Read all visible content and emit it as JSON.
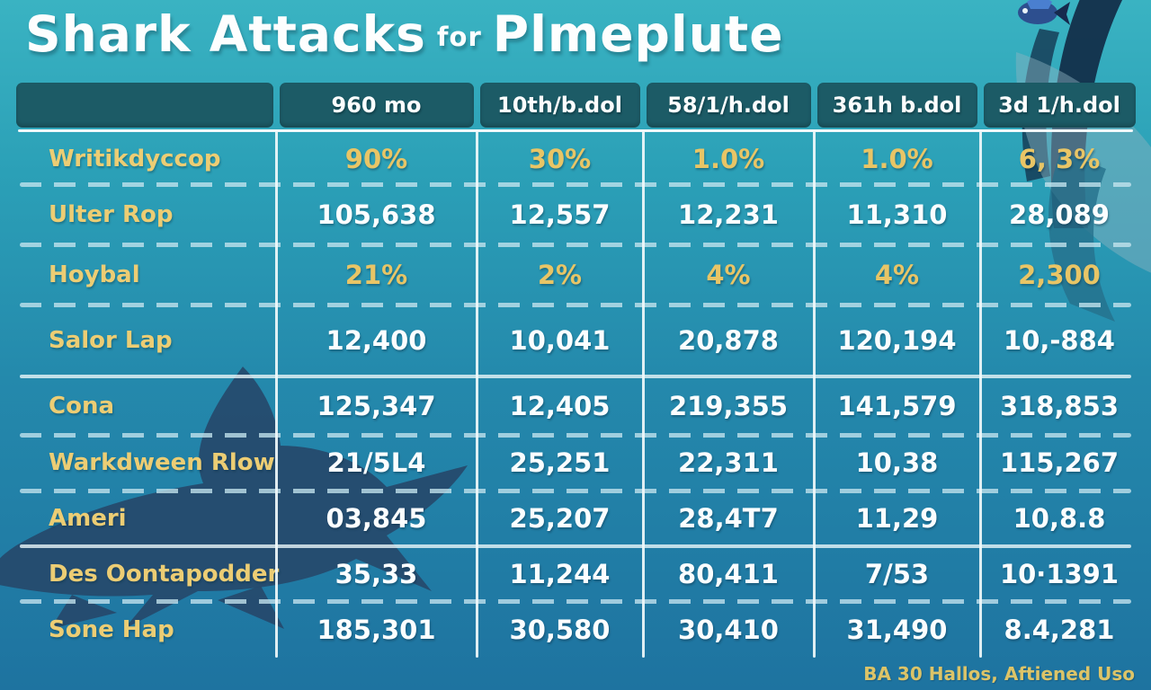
{
  "title": {
    "main": "Shark Attacks",
    "connector": "for",
    "subject": "Plmeplute"
  },
  "table": {
    "columns": [
      "",
      "960 mo",
      "10th/b.dol",
      "58/1/h.dol",
      "361h b.dol",
      "3d 1/h.dol"
    ],
    "rows": [
      {
        "label": "Writikdyccop",
        "values": [
          "90%",
          "30%",
          "1.0%",
          "1.0%",
          "6, 3%"
        ],
        "accent": true,
        "sep": "dashed"
      },
      {
        "label": "Ulter Rop",
        "values": [
          "105,638",
          "12,557",
          "12,231",
          "11,310",
          "28,089"
        ],
        "accent": false,
        "sep": "dashed"
      },
      {
        "label": "Hoybal",
        "values": [
          "21%",
          "2%",
          "4%",
          "4%",
          "2,300"
        ],
        "accent": true,
        "sep": "dashed"
      },
      {
        "label": "Salor Lap",
        "values": [
          "12,400",
          "10,041",
          "20,878",
          "120,194",
          "10,-884"
        ],
        "accent": false,
        "sep": "solid"
      },
      {
        "label": "Cona",
        "values": [
          "125,347",
          "12,405",
          "219,355",
          "141,579",
          "318,853"
        ],
        "accent": false,
        "sep": "dashed"
      },
      {
        "label": "Warkdween Rlow",
        "values": [
          "21/5L4",
          "25,251",
          "22,311",
          "10,38",
          "115,267"
        ],
        "accent": false,
        "sep": "dashed"
      },
      {
        "label": "Ameri",
        "values": [
          "03,845",
          "25,207",
          "28,4T7",
          "11,29",
          "10,8.8"
        ],
        "accent": false,
        "sep": "solid"
      },
      {
        "label": "Des Oontapodder",
        "values": [
          "35,33",
          "11,244",
          "80,411",
          "7/53",
          "10·1391"
        ],
        "accent": false,
        "sep": "dashed"
      },
      {
        "label": "Sone Hap",
        "values": [
          "185,301",
          "30,580",
          "30,410",
          "31,490",
          "8.4,281"
        ],
        "accent": false,
        "sep": "none"
      }
    ]
  },
  "footer": {
    "credit": "BA 30 Hallos, Aftiened Uso"
  },
  "icons": {
    "decor": [
      "shark-silhouette-left",
      "shark-tail-top-right",
      "shark-body-right",
      "small-fish"
    ]
  },
  "colors": {
    "background_top": "#3ab3c2",
    "background_bottom": "#1e73a0",
    "header_cell": "#1c5b66",
    "accent_text": "#e8c566",
    "value_text": "#fbfeff",
    "label_text": "#eccd74",
    "separator": "#c4e4ee",
    "divider": "#f0f8fa",
    "shark_dark": "#26496b",
    "shark_navy": "#132f4a",
    "shark_pale": "#8fb3c0",
    "footer_text": "#dcc468"
  },
  "chart_data": {
    "type": "table",
    "title": "Shark Attacks for Plmeplute",
    "columns": [
      "",
      "960 mo",
      "10th/b.dol",
      "58/1/h.dol",
      "361h b.dol",
      "3d 1/h.dol"
    ],
    "rows": [
      [
        "Writikdyccop",
        "90%",
        "30%",
        "1.0%",
        "1.0%",
        "6, 3%"
      ],
      [
        "Ulter Rop",
        "105,638",
        "12,557",
        "12,231",
        "11,310",
        "28,089"
      ],
      [
        "Hoybal",
        "21%",
        "2%",
        "4%",
        "4%",
        "2,300"
      ],
      [
        "Salor Lap",
        "12,400",
        "10,041",
        "20,878",
        "120,194",
        "10,-884"
      ],
      [
        "Cona",
        "125,347",
        "12,405",
        "219,355",
        "141,579",
        "318,853"
      ],
      [
        "Warkdween Rlow",
        "21/5L4",
        "25,251",
        "22,311",
        "10,38",
        "115,267"
      ],
      [
        "Ameri",
        "03,845",
        "25,207",
        "28,4T7",
        "11,29",
        "10,8.8"
      ],
      [
        "Des Oontapodder",
        "35,33",
        "11,244",
        "80,411",
        "7/53",
        "10·1391"
      ],
      [
        "Sone Hap",
        "185,301",
        "30,580",
        "30,410",
        "31,490",
        "8.4,281"
      ]
    ],
    "legend": "none",
    "notes": "Infographic data table; percentage rows highlighted in yellow"
  }
}
